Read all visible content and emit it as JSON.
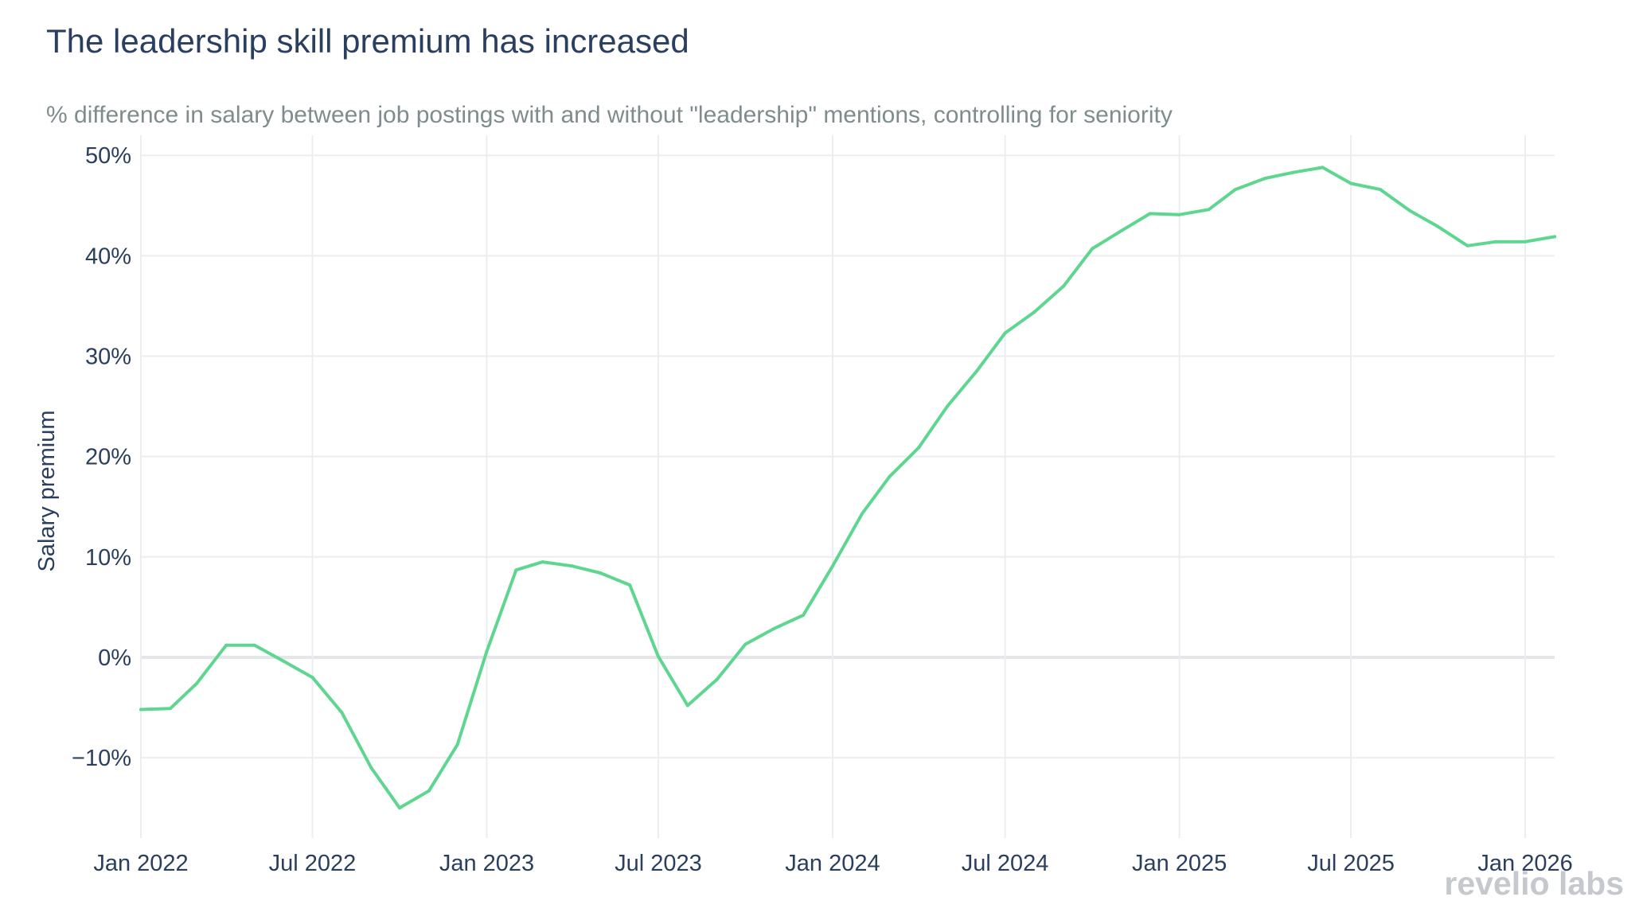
{
  "chart_data": {
    "type": "line",
    "title": "The leadership skill premium has increased",
    "subtitle": "% difference in salary between job postings with and without \"leadership\" mentions, controlling for seniority",
    "ylabel": "Salary premium",
    "xlabel": "",
    "xlim": [
      "2022-01-01",
      "2026-02-01"
    ],
    "ylim": [
      -18,
      52
    ],
    "x_ticks": [
      "Jan 2022",
      "Jul 2022",
      "Jan 2023",
      "Jul 2023",
      "Jan 2024",
      "Jul 2024",
      "Jan 2025",
      "Jul 2025",
      "Jan 2026"
    ],
    "x_tick_dates": [
      "2022-01-01",
      "2022-07-01",
      "2023-01-01",
      "2023-07-01",
      "2024-01-01",
      "2024-07-01",
      "2025-01-01",
      "2025-07-01",
      "2026-01-01"
    ],
    "y_ticks": [
      "50%",
      "40%",
      "30%",
      "20%",
      "10%",
      "0%",
      "−10%"
    ],
    "y_tick_values": [
      50,
      40,
      30,
      20,
      10,
      0,
      -10
    ],
    "grid": true,
    "series_color": "#5ed690",
    "series": [
      {
        "x": [
          "2022-01-01",
          "2022-02-01",
          "2022-03-01",
          "2022-04-01",
          "2022-05-01",
          "2022-06-01",
          "2022-07-01",
          "2022-08-01",
          "2022-09-01",
          "2022-10-01",
          "2022-11-01",
          "2022-12-01",
          "2023-01-01",
          "2023-02-01",
          "2023-03-01",
          "2023-04-01",
          "2023-05-01",
          "2023-06-01",
          "2023-07-01",
          "2023-08-01",
          "2023-09-01",
          "2023-10-01",
          "2023-11-01",
          "2023-12-01",
          "2024-01-01",
          "2024-02-01",
          "2024-03-01",
          "2024-04-01",
          "2024-05-01",
          "2024-06-01",
          "2024-07-01",
          "2024-08-01",
          "2024-09-01",
          "2024-10-01",
          "2024-11-01",
          "2024-12-01",
          "2025-01-01",
          "2025-02-01",
          "2025-03-01",
          "2025-04-01",
          "2025-05-01",
          "2025-06-01",
          "2025-07-01",
          "2025-08-01",
          "2025-09-01",
          "2025-10-01",
          "2025-11-01",
          "2025-12-01",
          "2026-01-01",
          "2026-02-01"
        ],
        "values": [
          -5.2,
          -5.1,
          -2.6,
          1.2,
          1.2,
          -0.4,
          -2.0,
          -5.5,
          -11.0,
          -15.0,
          -13.3,
          -8.7,
          0.6,
          8.7,
          9.5,
          9.1,
          8.4,
          7.2,
          0.1,
          -4.8,
          -2.2,
          1.3,
          2.9,
          4.2,
          9.1,
          14.3,
          18.0,
          20.9,
          25.0,
          28.5,
          32.3,
          34.4,
          37.0,
          40.7,
          42.5,
          44.2,
          44.1,
          44.6,
          46.6,
          47.7,
          48.3,
          48.8,
          47.2,
          46.6,
          44.5,
          42.9,
          41.0,
          41.4,
          41.4,
          41.9
        ]
      }
    ]
  },
  "branding": {
    "logo_text": "revelio labs"
  }
}
